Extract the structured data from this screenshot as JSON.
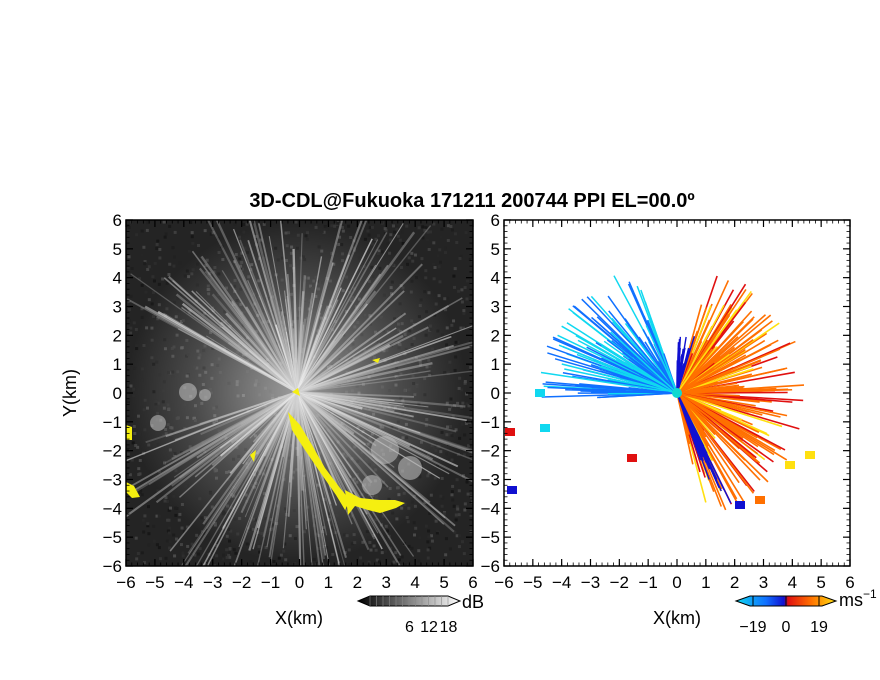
{
  "title": "3D-CDL@Fukuoka 171211 200744 PPI EL=00.0º",
  "chart_data": [
    {
      "type": "heatmap",
      "panel": "left",
      "description_field": "backscatter intensity",
      "xlabel": "X(km)",
      "ylabel": "Y(km)",
      "xlim": [
        -6,
        6
      ],
      "ylim": [
        -6,
        6
      ],
      "xticks": [
        -6,
        -5,
        -4,
        -3,
        -2,
        -1,
        0,
        1,
        2,
        3,
        4,
        5,
        6
      ],
      "yticks": [
        -6,
        -5,
        -4,
        -3,
        -2,
        -1,
        0,
        1,
        2,
        3,
        4,
        5,
        6
      ],
      "colorbar": {
        "ticks": [
          6,
          12,
          18
        ],
        "unit": "dB"
      },
      "colormap": [
        "#000000",
        "#ffffff"
      ],
      "highlight_color": "#f5ef10"
    },
    {
      "type": "heatmap",
      "panel": "right",
      "description_field": "radial velocity",
      "xlabel": "X(km)",
      "ylabel": "",
      "xlim": [
        -6,
        6
      ],
      "ylim": [
        -6,
        6
      ],
      "xticks": [
        -6,
        -5,
        -4,
        -3,
        -2,
        -1,
        0,
        1,
        2,
        3,
        4,
        5,
        6
      ],
      "yticks": [
        -6,
        -5,
        -4,
        -3,
        -2,
        -1,
        0,
        1,
        2,
        3,
        4,
        5,
        6
      ],
      "colorbar": {
        "ticks": [
          -19,
          0,
          19
        ],
        "unit": "ms",
        "unit_exp": "−1"
      },
      "colormap": [
        "#10d8f0",
        "#1070ff",
        "#1010d0",
        "#e01010",
        "#ff7000",
        "#ffe010"
      ]
    }
  ]
}
